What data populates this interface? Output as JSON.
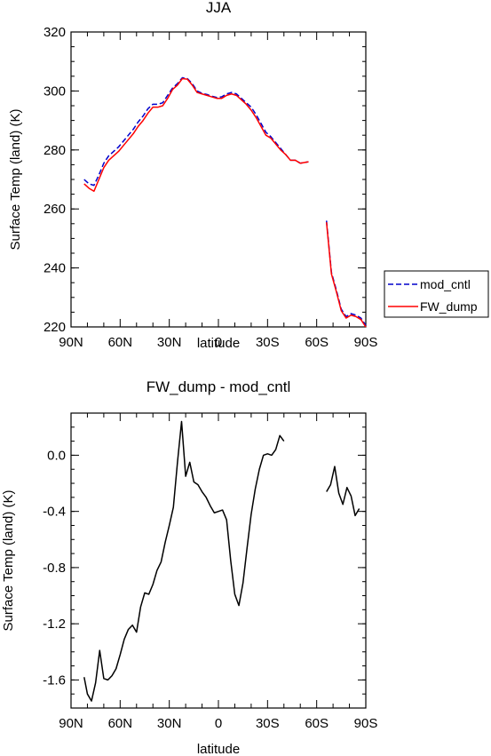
{
  "chart_data": [
    {
      "type": "line",
      "title": "JJA",
      "xlabel": "latitude",
      "ylabel": "Surface Temp (land) (K)",
      "xlim": [
        90,
        -90
      ],
      "ylim": [
        220,
        320
      ],
      "x_ticks": [
        90,
        60,
        30,
        0,
        -30,
        -60,
        -90
      ],
      "x_tick_labels": [
        "90N",
        "60N",
        "30N",
        "0",
        "30S",
        "60S",
        "90S"
      ],
      "y_ticks": [
        220,
        240,
        260,
        280,
        300,
        320
      ],
      "y_tick_labels": [
        "220",
        "240",
        "260",
        "280",
        "300",
        "320"
      ],
      "legend": {
        "placement": "right",
        "entries": [
          "mod_cntl",
          "FW_dump"
        ]
      },
      "series": [
        {
          "name": "mod_cntl",
          "color": "#0000cc",
          "dash": "dashed",
          "segments": [
            [
              [
                82,
                270.0
              ],
              [
                79,
                268.5
              ],
              [
                76,
                268.0
              ],
              [
                73,
                271.5
              ],
              [
                70,
                275.5
              ],
              [
                67,
                278.0
              ],
              [
                64,
                279.5
              ],
              [
                61,
                281.0
              ],
              [
                58,
                283.0
              ],
              [
                55,
                285.0
              ],
              [
                52,
                287.0
              ],
              [
                49,
                289.5
              ],
              [
                46,
                291.5
              ],
              [
                43,
                294.0
              ],
              [
                40,
                295.5
              ],
              [
                37,
                295.5
              ],
              [
                34,
                296.0
              ],
              [
                31,
                298.5
              ],
              [
                28,
                301.0
              ],
              [
                25,
                302.5
              ],
              [
                22,
                304.5
              ],
              [
                19,
                304.2
              ],
              [
                16,
                302.5
              ],
              [
                13,
                300.0
              ],
              [
                10,
                299.2
              ],
              [
                7,
                298.8
              ],
              [
                4,
                298.2
              ],
              [
                1,
                297.8
              ],
              [
                -2,
                298.0
              ],
              [
                -5,
                299.0
              ],
              [
                -8,
                299.5
              ],
              [
                -11,
                299.0
              ],
              [
                -14,
                297.5
              ],
              [
                -17,
                296.0
              ],
              [
                -20,
                294.5
              ],
              [
                -23,
                292.0
              ],
              [
                -26,
                289.0
              ],
              [
                -29,
                286.0
              ],
              [
                -32,
                284.5
              ],
              [
                -35,
                282.5
              ],
              [
                -38,
                280.5
              ],
              [
                -41,
                278.5
              ],
              [
                -44,
                276.5
              ],
              [
                -47,
                276.5
              ],
              [
                -50,
                275.5
              ],
              [
                -53,
                275.8
              ],
              [
                -55,
                276.0
              ]
            ],
            [
              [
                -66,
                256.0
              ],
              [
                -69,
                238.5
              ],
              [
                -72,
                232.5
              ],
              [
                -75,
                226.0
              ],
              [
                -78,
                223.5
              ],
              [
                -81,
                224.5
              ],
              [
                -84,
                224.0
              ],
              [
                -87,
                223.0
              ],
              [
                -90,
                220.5
              ]
            ]
          ]
        },
        {
          "name": "FW_dump",
          "color": "#ff0000",
          "dash": "solid",
          "segments": [
            [
              [
                82,
                268.5
              ],
              [
                79,
                267.0
              ],
              [
                76,
                266.0
              ],
              [
                73,
                270.0
              ],
              [
                70,
                274.0
              ],
              [
                67,
                276.5
              ],
              [
                64,
                278.0
              ],
              [
                61,
                279.5
              ],
              [
                58,
                281.5
              ],
              [
                55,
                283.5
              ],
              [
                52,
                285.5
              ],
              [
                49,
                288.0
              ],
              [
                46,
                290.0
              ],
              [
                43,
                292.5
              ],
              [
                40,
                294.5
              ],
              [
                37,
                294.5
              ],
              [
                34,
                295.0
              ],
              [
                31,
                297.5
              ],
              [
                28,
                300.5
              ],
              [
                25,
                302.0
              ],
              [
                22,
                304.2
              ],
              [
                19,
                304.0
              ],
              [
                16,
                302.0
              ],
              [
                13,
                299.5
              ],
              [
                10,
                299.0
              ],
              [
                7,
                298.5
              ],
              [
                4,
                298.0
              ],
              [
                1,
                297.5
              ],
              [
                -2,
                297.5
              ],
              [
                -5,
                298.5
              ],
              [
                -8,
                299.0
              ],
              [
                -11,
                298.5
              ],
              [
                -14,
                297.0
              ],
              [
                -17,
                295.5
              ],
              [
                -20,
                293.5
              ],
              [
                -23,
                291.0
              ],
              [
                -26,
                288.0
              ],
              [
                -29,
                285.0
              ],
              [
                -32,
                284.0
              ],
              [
                -35,
                282.0
              ],
              [
                -38,
                280.0
              ],
              [
                -41,
                278.5
              ],
              [
                -44,
                276.5
              ],
              [
                -47,
                276.5
              ],
              [
                -50,
                275.5
              ],
              [
                -53,
                275.8
              ],
              [
                -55,
                276.0
              ]
            ],
            [
              [
                -66,
                255.5
              ],
              [
                -69,
                238.0
              ],
              [
                -72,
                232.0
              ],
              [
                -75,
                225.5
              ],
              [
                -78,
                223.0
              ],
              [
                -81,
                224.0
              ],
              [
                -84,
                223.5
              ],
              [
                -87,
                222.5
              ],
              [
                -90,
                220.0
              ]
            ]
          ]
        }
      ]
    },
    {
      "type": "line",
      "title": "FW_dump - mod_cntl",
      "xlabel": "latitude",
      "ylabel": "Surface Temp (land) (K)",
      "xlim": [
        90,
        -90
      ],
      "ylim": [
        -1.8,
        0.3
      ],
      "x_ticks": [
        90,
        60,
        30,
        0,
        -30,
        -60,
        -90
      ],
      "x_tick_labels": [
        "90N",
        "60N",
        "30N",
        "0",
        "30S",
        "60S",
        "90S"
      ],
      "y_ticks": [
        -1.6,
        -1.2,
        -0.8,
        -0.4,
        0.0
      ],
      "y_tick_labels": [
        "-1.6",
        "-1.2",
        "-0.8",
        "-0.4",
        "0.0"
      ],
      "series": [
        {
          "color": "#000000",
          "dash": "solid",
          "segments": [
            [
              [
                82,
                -1.58
              ],
              [
                80,
                -1.7
              ],
              [
                77.5,
                -1.75
              ],
              [
                75,
                -1.62
              ],
              [
                72.5,
                -1.39
              ],
              [
                70,
                -1.59
              ],
              [
                67.5,
                -1.6
              ],
              [
                65,
                -1.57
              ],
              [
                62.5,
                -1.52
              ],
              [
                60,
                -1.42
              ],
              [
                57.5,
                -1.31
              ],
              [
                55,
                -1.24
              ],
              [
                52.5,
                -1.21
              ],
              [
                50,
                -1.26
              ],
              [
                47.5,
                -1.08
              ],
              [
                45,
                -0.98
              ],
              [
                42.5,
                -0.99
              ],
              [
                40,
                -0.92
              ],
              [
                37.5,
                -0.82
              ],
              [
                35,
                -0.76
              ],
              [
                32.5,
                -0.62
              ],
              [
                30,
                -0.5
              ],
              [
                27.5,
                -0.37
              ],
              [
                25,
                -0.05
              ],
              [
                22.5,
                0.24
              ],
              [
                20,
                -0.15
              ],
              [
                17.5,
                -0.05
              ],
              [
                15,
                -0.19
              ],
              [
                12.5,
                -0.21
              ],
              [
                10,
                -0.26
              ],
              [
                7.5,
                -0.3
              ],
              [
                5,
                -0.36
              ],
              [
                2.5,
                -0.41
              ],
              [
                0,
                -0.4
              ],
              [
                -2.5,
                -0.39
              ],
              [
                -5,
                -0.46
              ],
              [
                -7.5,
                -0.75
              ],
              [
                -10,
                -0.99
              ],
              [
                -12.5,
                -1.07
              ],
              [
                -15,
                -0.91
              ],
              [
                -17.5,
                -0.66
              ],
              [
                -20,
                -0.42
              ],
              [
                -22.5,
                -0.24
              ],
              [
                -25,
                -0.1
              ],
              [
                -27.5,
                0.0
              ],
              [
                -30,
                0.01
              ],
              [
                -32.5,
                0.0
              ],
              [
                -35,
                0.04
              ],
              [
                -37.5,
                0.14
              ],
              [
                -40,
                0.1
              ]
            ],
            [
              [
                -66,
                -0.26
              ],
              [
                -68.5,
                -0.21
              ],
              [
                -71,
                -0.08
              ],
              [
                -73.5,
                -0.27
              ],
              [
                -76,
                -0.35
              ],
              [
                -78.5,
                -0.23
              ],
              [
                -81,
                -0.29
              ],
              [
                -83.5,
                -0.43
              ],
              [
                -86,
                -0.38
              ]
            ]
          ]
        }
      ]
    }
  ]
}
